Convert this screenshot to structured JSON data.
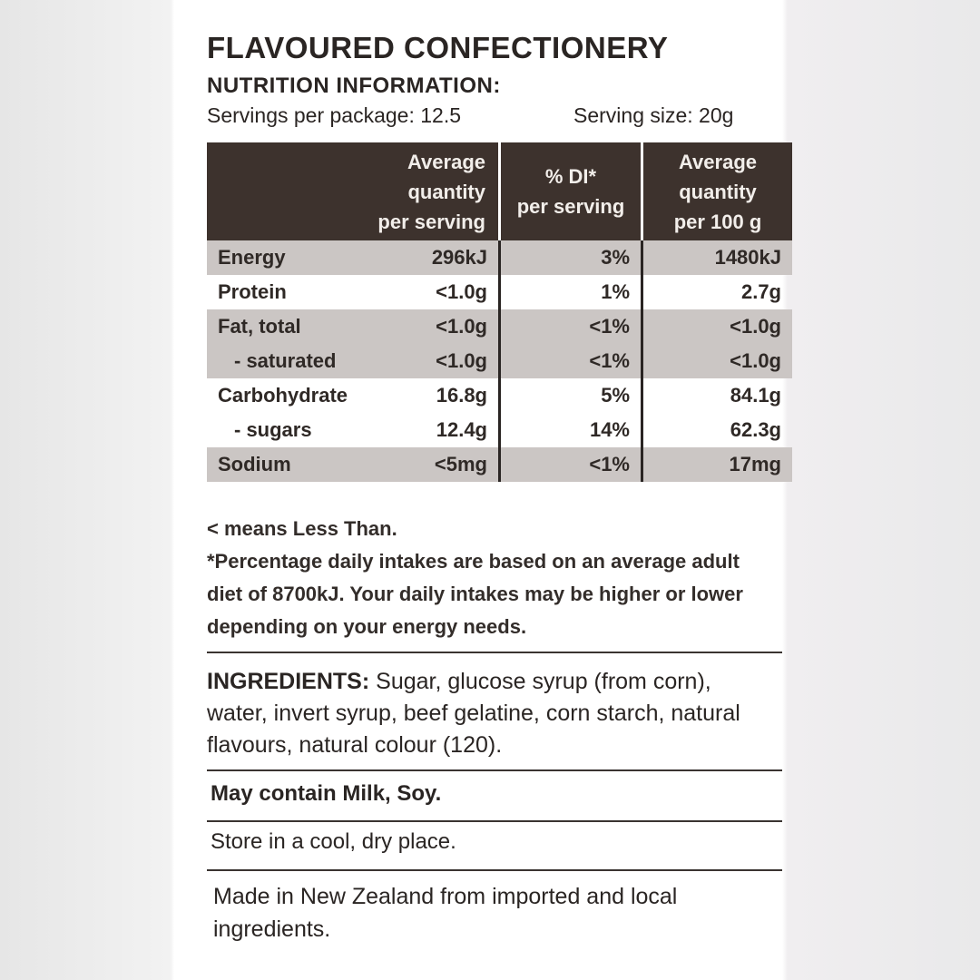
{
  "header": {
    "title": "FLAVOURED CONFECTIONERY",
    "subtitle": "NUTRITION INFORMATION:",
    "servings_per_package": "Servings per package: 12.5",
    "serving_size": "Serving size: 20g"
  },
  "table": {
    "columns": [
      [
        "Average",
        "quantity",
        "per serving"
      ],
      [
        "% DI*",
        "per serving"
      ],
      [
        "Average",
        "quantity",
        "per 100 g"
      ]
    ],
    "rows": [
      [
        "Energy",
        "296kJ",
        "3%",
        "1480kJ"
      ],
      [
        "Protein",
        "<1.0g",
        "1%",
        "2.7g"
      ],
      [
        "Fat, total",
        "<1.0g",
        "<1%",
        "<1.0g"
      ],
      [
        "- saturated",
        "<1.0g",
        "<1%",
        "<1.0g"
      ],
      [
        "Carbohydrate",
        "16.8g",
        "5%",
        "84.1g"
      ],
      [
        "- sugars",
        "12.4g",
        "14%",
        "62.3g"
      ],
      [
        "Sodium",
        "<5mg",
        "<1%",
        "17mg"
      ]
    ],
    "shaded": [
      true,
      false,
      true,
      true,
      false,
      false,
      true
    ]
  },
  "footnotes": [
    "< means Less Than.",
    "*Percentage daily intakes are based on an average adult diet of 8700kJ. Your daily intakes may be higher or lower depending on your energy needs."
  ],
  "ingredients": {
    "label": "INGREDIENTS:",
    "text": "Sugar, glucose syrup (from corn), water, invert syrup, beef gelatine, corn starch, natural flavours, natural colour (120)."
  },
  "allergens": "May contain Milk, Soy.",
  "storage": "Store in a cool, dry place.",
  "origin": "Made in New Zealand from imported and local ingredients."
}
